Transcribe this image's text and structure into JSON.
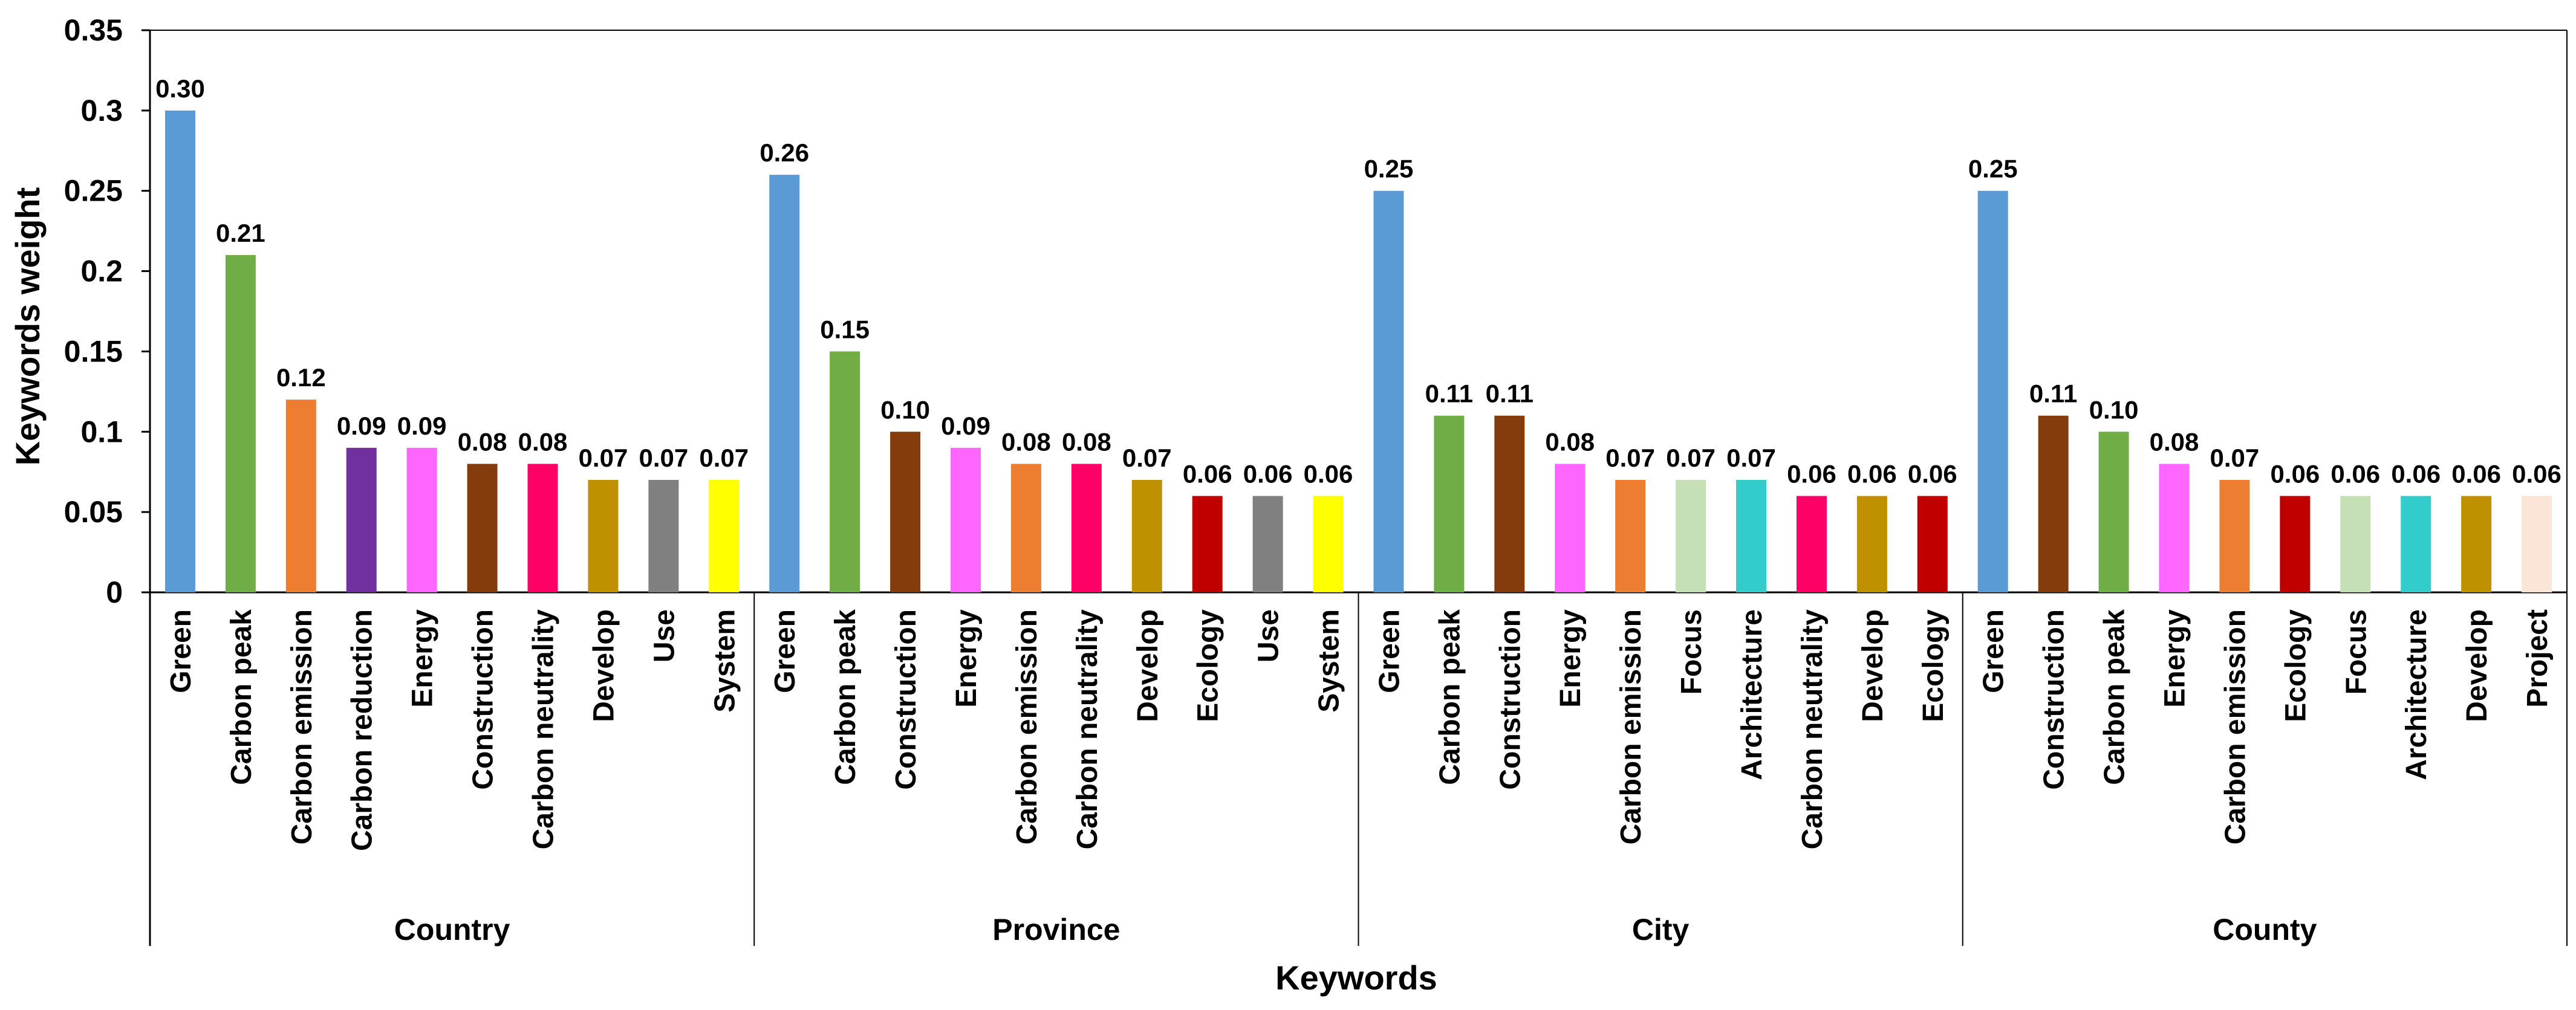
{
  "chart_data": {
    "type": "bar",
    "xlabel": "Keywords",
    "ylabel": "Keywords weight",
    "ylim": [
      0,
      0.35
    ],
    "yticks": [
      "0",
      "0.05",
      "0.1",
      "0.15",
      "0.2",
      "0.25",
      "0.3",
      "0.35"
    ],
    "grid": false,
    "legend": "none",
    "groups": [
      {
        "name": "Country",
        "bars": [
          {
            "label": "Green",
            "value": 0.3,
            "display": "0.30",
            "color": "#5B9BD5"
          },
          {
            "label": "Carbon peak",
            "value": 0.21,
            "display": "0.21",
            "color": "#70AD47"
          },
          {
            "label": "Carbon emission",
            "value": 0.12,
            "display": "0.12",
            "color": "#ED7D31"
          },
          {
            "label": "Carbon reduction",
            "value": 0.09,
            "display": "0.09",
            "color": "#7030A0"
          },
          {
            "label": "Energy",
            "value": 0.09,
            "display": "0.09",
            "color": "#FF66FF"
          },
          {
            "label": "Construction",
            "value": 0.08,
            "display": "0.08",
            "color": "#843C0C"
          },
          {
            "label": "Carbon neutrality",
            "value": 0.08,
            "display": "0.08",
            "color": "#FF0066"
          },
          {
            "label": "Develop",
            "value": 0.07,
            "display": "0.07",
            "color": "#BF9000"
          },
          {
            "label": "Use",
            "value": 0.07,
            "display": "0.07",
            "color": "#808080"
          },
          {
            "label": "System",
            "value": 0.07,
            "display": "0.07",
            "color": "#FFFF00"
          }
        ]
      },
      {
        "name": "Province",
        "bars": [
          {
            "label": "Green",
            "value": 0.26,
            "display": "0.26",
            "color": "#5B9BD5"
          },
          {
            "label": "Carbon peak",
            "value": 0.15,
            "display": "0.15",
            "color": "#70AD47"
          },
          {
            "label": "Construction",
            "value": 0.1,
            "display": "0.10",
            "color": "#843C0C"
          },
          {
            "label": "Energy",
            "value": 0.09,
            "display": "0.09",
            "color": "#FF66FF"
          },
          {
            "label": "Carbon emission",
            "value": 0.08,
            "display": "0.08",
            "color": "#ED7D31"
          },
          {
            "label": "Carbon neutrality",
            "value": 0.08,
            "display": "0.08",
            "color": "#FF0066"
          },
          {
            "label": "Develop",
            "value": 0.07,
            "display": "0.07",
            "color": "#BF9000"
          },
          {
            "label": "Ecology",
            "value": 0.06,
            "display": "0.06",
            "color": "#C00000"
          },
          {
            "label": "Use",
            "value": 0.06,
            "display": "0.06",
            "color": "#808080"
          },
          {
            "label": "System",
            "value": 0.06,
            "display": "0.06",
            "color": "#FFFF00"
          }
        ]
      },
      {
        "name": "City",
        "bars": [
          {
            "label": "Green",
            "value": 0.25,
            "display": "0.25",
            "color": "#5B9BD5"
          },
          {
            "label": "Carbon peak",
            "value": 0.11,
            "display": "0.11",
            "color": "#70AD47"
          },
          {
            "label": "Construction",
            "value": 0.11,
            "display": "0.11",
            "color": "#843C0C"
          },
          {
            "label": "Energy",
            "value": 0.08,
            "display": "0.08",
            "color": "#FF66FF"
          },
          {
            "label": "Carbon emission",
            "value": 0.07,
            "display": "0.07",
            "color": "#ED7D31"
          },
          {
            "label": "Focus",
            "value": 0.07,
            "display": "0.07",
            "color": "#C5E0B4"
          },
          {
            "label": "Architecture",
            "value": 0.07,
            "display": "0.07",
            "color": "#33CCCC"
          },
          {
            "label": "Carbon neutrality",
            "value": 0.06,
            "display": "0.06",
            "color": "#FF0066"
          },
          {
            "label": "Develop",
            "value": 0.06,
            "display": "0.06",
            "color": "#BF9000"
          },
          {
            "label": "Ecology",
            "value": 0.06,
            "display": "0.06",
            "color": "#C00000"
          }
        ]
      },
      {
        "name": "County",
        "bars": [
          {
            "label": "Green",
            "value": 0.25,
            "display": "0.25",
            "color": "#5B9BD5"
          },
          {
            "label": "Construction",
            "value": 0.11,
            "display": "0.11",
            "color": "#843C0C"
          },
          {
            "label": "Carbon peak",
            "value": 0.1,
            "display": "0.10",
            "color": "#70AD47"
          },
          {
            "label": "Energy",
            "value": 0.08,
            "display": "0.08",
            "color": "#FF66FF"
          },
          {
            "label": "Carbon emission",
            "value": 0.07,
            "display": "0.07",
            "color": "#ED7D31"
          },
          {
            "label": "Ecology",
            "value": 0.06,
            "display": "0.06",
            "color": "#C00000"
          },
          {
            "label": "Focus",
            "value": 0.06,
            "display": "0.06",
            "color": "#C5E0B4"
          },
          {
            "label": "Architecture",
            "value": 0.06,
            "display": "0.06",
            "color": "#33CCCC"
          },
          {
            "label": "Develop",
            "value": 0.06,
            "display": "0.06",
            "color": "#BF9000"
          },
          {
            "label": "Project",
            "value": 0.06,
            "display": "0.06",
            "color": "#FBE5D6"
          }
        ]
      }
    ]
  }
}
